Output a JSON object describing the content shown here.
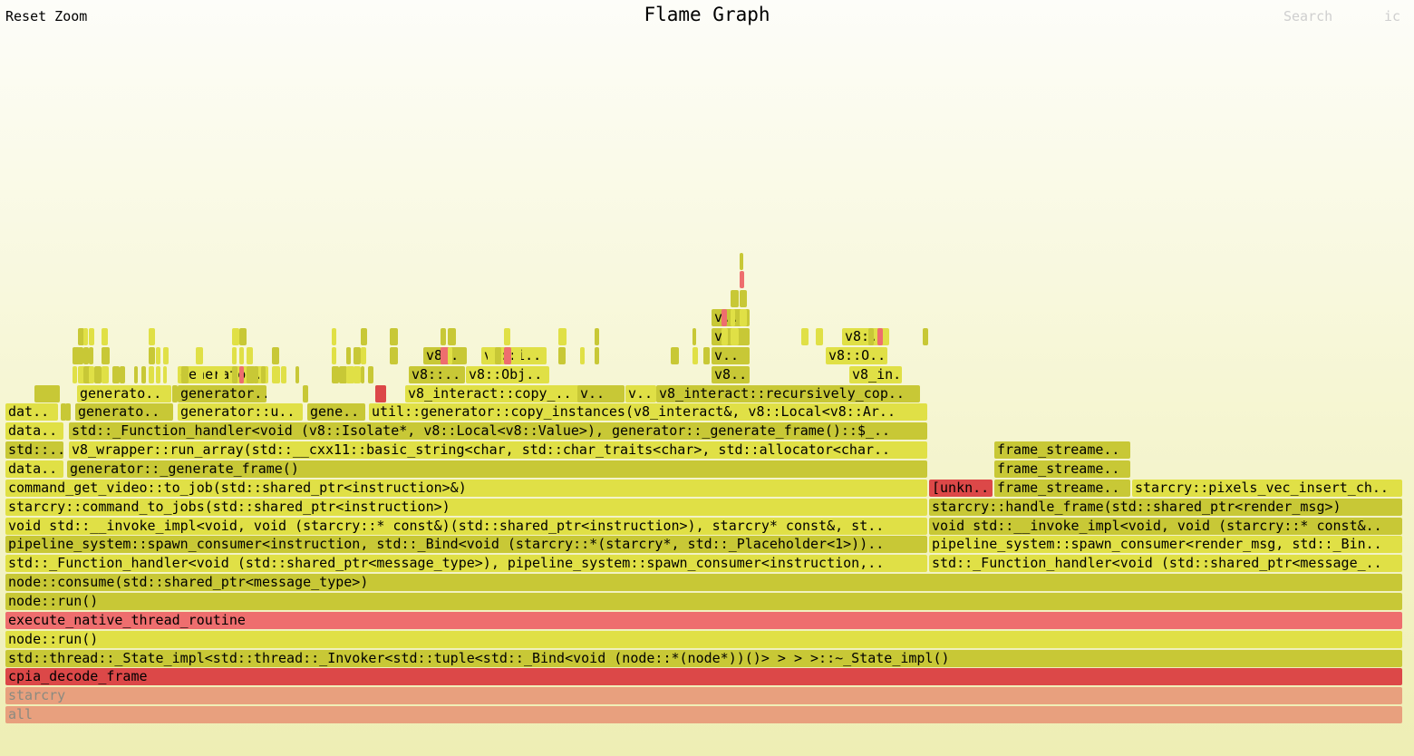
{
  "header": {
    "reset_zoom": "Reset Zoom",
    "title": "Flame Graph",
    "search": "Search",
    "ic": "ic"
  },
  "colors": {
    "root": "#e8a07e",
    "hot": "#dc4848",
    "pink": "#ee6e6e",
    "olive": "#c8c836",
    "lime": "#e0e046"
  },
  "frames": [
    {
      "label": "all",
      "muted": true
    },
    {
      "label": "starcry",
      "muted": true
    },
    {
      "label": "cpia_decode_frame"
    },
    {
      "label": "std::thread::_State_impl<std::thread::_Invoker<std::tuple<std::_Bind<void (node::*(node*))()> > > >::~_State_impl()"
    },
    {
      "label": "node::run()"
    },
    {
      "label": "execute_native_thread_routine"
    },
    {
      "label": "node::run()"
    },
    {
      "label": "node::consume(std::shared_ptr<message_type>)"
    },
    {
      "label": "std::_Function_handler<void (std::shared_ptr<message_type>), pipeline_system::spawn_consumer<instruction,.."
    },
    {
      "label": "std::_Function_handler<void (std::shared_ptr<message_.."
    },
    {
      "label": "pipeline_system::spawn_consumer<instruction, std::_Bind<void (starcry::*(starcry*, std::_Placeholder<1>)).."
    },
    {
      "label": "pipeline_system::spawn_consumer<render_msg, std::_Bin.."
    },
    {
      "label": "void std::__invoke_impl<void, void (starcry::* const&)(std::shared_ptr<instruction>), starcry* const&, st.."
    },
    {
      "label": "void std::__invoke_impl<void, void (starcry::* const&.."
    },
    {
      "label": "starcry::command_to_jobs(std::shared_ptr<instruction>)"
    },
    {
      "label": "starcry::handle_frame(std::shared_ptr<render_msg>)"
    },
    {
      "label": "command_get_video::to_job(std::shared_ptr<instruction>&)"
    },
    {
      "label": "[unkn.."
    },
    {
      "label": "frame_streame.."
    },
    {
      "label": "starcry::pixels_vec_insert_ch.."
    },
    {
      "label": "data.."
    },
    {
      "label": "generator::_generate_frame()"
    },
    {
      "label": "frame_streame.."
    },
    {
      "label": "std::.."
    },
    {
      "label": "v8_wrapper::run_array(std::__cxx11::basic_string<char, std::char_traits<char>, std::allocator<char.."
    },
    {
      "label": "frame_streame.."
    },
    {
      "label": "data.."
    },
    {
      "label": "std::_Function_handler<void (v8::Isolate*, v8::Local<v8::Value>), generator::_generate_frame()::$_.."
    },
    {
      "label": "dat.."
    },
    {
      "label": "generato.."
    },
    {
      "label": "generator::u.."
    },
    {
      "label": "gene.."
    },
    {
      "label": "util::generator::copy_instances(v8_interact&, v8::Local<v8::Ar.."
    },
    {
      "label": "generato.."
    },
    {
      "label": "generator.."
    },
    {
      "label": "v8_interact::copy_.."
    },
    {
      "label": "v.."
    },
    {
      "label": "v.."
    },
    {
      "label": "v8_interact::recursively_cop.."
    },
    {
      "label": "generato.."
    },
    {
      "label": "v8::.."
    },
    {
      "label": "v8::Obj.."
    },
    {
      "label": "v8.."
    },
    {
      "label": "v8_in.."
    },
    {
      "label": "v8.."
    },
    {
      "label": "v8::i.."
    },
    {
      "label": "v.."
    },
    {
      "label": "v8::O.."
    },
    {
      "label": "v.."
    },
    {
      "label": "v8:.."
    },
    {
      "label": "v.."
    }
  ]
}
